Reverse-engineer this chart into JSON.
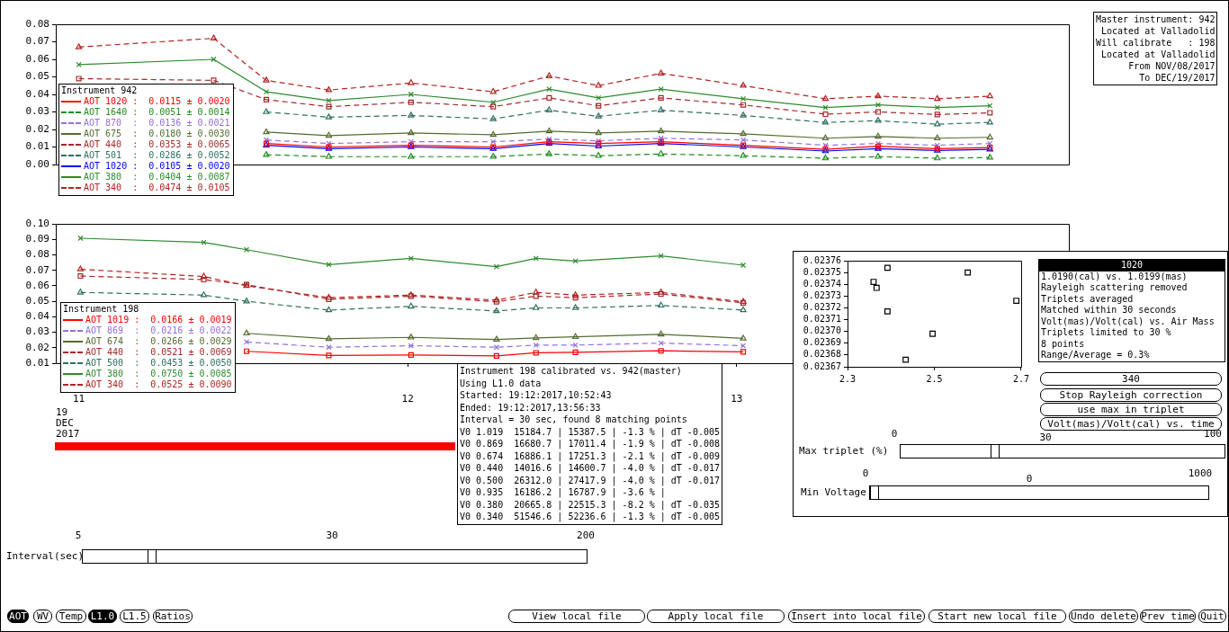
{
  "chart_data": [
    {
      "type": "line",
      "legend_title": "Instrument 942",
      "legend": "left",
      "tick_labels": "y",
      "x": [
        11.0,
        11.41,
        11.57,
        11.76,
        12.01,
        12.26,
        12.43,
        12.58,
        12.77,
        13.02,
        13.27,
        13.43,
        13.61,
        13.77
      ],
      "xlim": [
        10.93,
        14.01
      ],
      "ylim": [
        0,
        0.08
      ],
      "yticks": [
        {
          "value": 0,
          "label": "0.00"
        },
        0.01,
        0.02,
        0.03,
        0.04,
        0.05,
        0.06,
        0.07,
        0.08
      ],
      "annotations": [
        "Master instrument: 942",
        "Located at Valladolid",
        "Will calibrate   : 198",
        "Located at Valladolid",
        "From NOV/08/2017",
        "To DEC/19/2017"
      ],
      "series": [
        {
          "name": "AOT 1020 :  0.0115 ± 0.0020",
          "color": "#ff0000",
          "marker": "square",
          "line_style": "solid",
          "values": [
            null,
            null,
            0.012,
            0.01,
            0.011,
            0.01,
            0.013,
            0.012,
            0.013,
            0.011,
            0.0087,
            0.0104,
            0.009,
            0.0097
          ]
        },
        {
          "name": "AOT 1640 :  0.0051 ± 0.0014",
          "color": "#1e8c1e",
          "marker": "triangle",
          "line_style": "dashed",
          "values": [
            null,
            null,
            0.0056,
            0.0045,
            0.0045,
            0.0045,
            0.006,
            0.005,
            0.006,
            0.005,
            0.0036,
            0.0045,
            0.0036,
            0.004
          ]
        },
        {
          "name": "AOT 870  :  0.0136 ± 0.0021",
          "color": "#9370db",
          "marker": "cross",
          "line_style": "dashed",
          "values": [
            null,
            null,
            0.014,
            0.012,
            0.013,
            0.013,
            0.0145,
            0.0135,
            0.015,
            0.014,
            0.011,
            0.012,
            0.011,
            0.012
          ]
        },
        {
          "name": "AOT 675  :  0.0180 ± 0.0030",
          "color": "#556b2f",
          "marker": "triangle",
          "line_style": "solid",
          "values": [
            null,
            null,
            0.0185,
            0.0165,
            0.018,
            0.017,
            0.019,
            0.018,
            0.019,
            0.0175,
            0.015,
            0.016,
            0.015,
            0.0155
          ]
        },
        {
          "name": "AOT 440  :  0.0353 ± 0.0065",
          "color": "#a52a2a",
          "marker": "square",
          "line_style": "dashed",
          "values": [
            0.049,
            0.048,
            0.037,
            0.033,
            0.0355,
            0.033,
            0.038,
            0.0335,
            0.038,
            0.034,
            0.0287,
            0.03,
            0.0285,
            0.0295
          ]
        },
        {
          "name": "AOT 501  :  0.0286 ± 0.0052",
          "color": "#2f6f5f",
          "marker": "triangle",
          "line_style": "dashed",
          "values": [
            null,
            null,
            0.03,
            0.027,
            0.028,
            0.026,
            0.031,
            0.0275,
            0.031,
            0.028,
            0.024,
            0.025,
            0.023,
            0.024
          ]
        },
        {
          "name": "AOT 1020 :  0.0105 ± 0.0020",
          "color": "#0000ff",
          "marker": "triangle",
          "line_style": "solid",
          "values": [
            null,
            null,
            0.011,
            0.009,
            0.01,
            0.009,
            0.012,
            0.0105,
            0.012,
            0.01,
            0.0077,
            0.009,
            0.008,
            0.0087
          ]
        },
        {
          "name": "AOT 380  :  0.0404 ± 0.0087",
          "color": "#2e8b2e",
          "marker": "cross",
          "line_style": "solid",
          "values": [
            0.057,
            0.06,
            0.0415,
            0.0365,
            0.04,
            0.0355,
            0.043,
            0.038,
            0.043,
            0.0375,
            0.0325,
            0.034,
            0.0325,
            0.0335
          ]
        },
        {
          "name": "AOT 340  :  0.0474 ± 0.0105",
          "color": "#b22222",
          "marker": "triangle",
          "line_style": "dashed",
          "values": [
            0.067,
            0.072,
            0.048,
            0.0425,
            0.0465,
            0.0415,
            0.0505,
            0.045,
            0.052,
            0.045,
            0.0375,
            0.039,
            0.0375,
            0.039
          ]
        }
      ]
    },
    {
      "type": "line",
      "legend_title": "Instrument 198",
      "legend": "left",
      "x": [
        11.005,
        11.38,
        11.51,
        11.76,
        12.01,
        12.27,
        12.39,
        12.51,
        12.77,
        13.02
      ],
      "xlim": [
        10.93,
        14.01
      ],
      "xticks": [
        11,
        12,
        13
      ],
      "ylim": [
        0.01,
        0.1
      ],
      "yticks": [
        0.01,
        0.02,
        0.03,
        0.04,
        0.05,
        0.06,
        0.07,
        0.08,
        0.09,
        {
          "value": 0.1,
          "label": "0.10"
        }
      ],
      "annotations": [
        "19",
        "DEC",
        "2017"
      ],
      "series": [
        {
          "name": "AOT 1019 :  0.0166 ± 0.0019",
          "color": "#ff0000",
          "marker": "square",
          "line_style": "solid",
          "values": [
            null,
            null,
            0.0177,
            0.015,
            0.0153,
            0.0147,
            0.0167,
            0.017,
            0.018,
            0.0173
          ]
        },
        {
          "name": "AOT 869  :  0.0216 ± 0.0022",
          "color": "#9370db",
          "marker": "cross",
          "line_style": "dashed",
          "values": [
            null,
            null,
            0.0237,
            0.0203,
            0.0213,
            0.0203,
            0.0217,
            0.0217,
            0.023,
            0.0213
          ]
        },
        {
          "name": "AOT 674  :  0.0266 ± 0.0029",
          "color": "#556b2f",
          "marker": "triangle",
          "line_style": "solid",
          "values": [
            null,
            null,
            0.0293,
            0.0257,
            0.0267,
            0.0253,
            0.0263,
            0.027,
            0.0287,
            0.026
          ]
        },
        {
          "name": "AOT 440  :  0.0521 ± 0.0069",
          "color": "#a52a2a",
          "marker": "square",
          "line_style": "dashed",
          "values": [
            0.0663,
            0.064,
            0.0607,
            0.0513,
            0.0533,
            0.0497,
            0.0533,
            0.0523,
            0.0547,
            0.049
          ]
        },
        {
          "name": "AOT 500  :  0.0453 ± 0.0050",
          "color": "#2f6f5f",
          "marker": "triangle",
          "line_style": "dashed",
          "values": [
            0.0557,
            0.054,
            0.05,
            0.0443,
            0.0467,
            0.0437,
            0.0457,
            0.0457,
            0.0473,
            0.0443
          ]
        },
        {
          "name": "AOT 380  :  0.0750 ± 0.0085",
          "color": "#2e8b2e",
          "marker": "cross",
          "line_style": "solid",
          "values": [
            0.0907,
            0.088,
            0.0833,
            0.0737,
            0.0777,
            0.0723,
            0.0777,
            0.076,
            0.0793,
            0.0733
          ]
        },
        {
          "name": "AOT 340  :  0.0525 ± 0.0090",
          "color": "#b22222",
          "marker": "triangle",
          "line_style": "dashed",
          "values": [
            0.0707,
            0.066,
            0.06,
            0.0523,
            0.054,
            0.0507,
            0.0557,
            0.054,
            0.0557,
            0.0497
          ]
        }
      ]
    },
    {
      "type": "other",
      "title": "Instrument 198 calibrated vs. 942(master)",
      "annotations": [
        "Using L1.0 data",
        "Started: 19:12:2017,10:52:43",
        "Ended: 19:12:2017,13:56:33",
        "Interval = 30 sec, found 8 matching points",
        "V0 1.019  15184.7 | 15387.5 | -1.3 % | dT -0.005",
        "V0 0.869  16680.7 | 17011.4 | -1.9 % | dT -0.008",
        "V0 0.674  16886.1 | 17251.3 | -2.1 % | dT -0.009",
        "V0 0.440  14016.6 | 14600.7 | -4.0 % | dT -0.017",
        "V0 0.500  26312.0 | 27417.9 | -4.0 % | dT -0.017",
        "V0 0.935  16186.2 | 16787.9 | -3.6 % |",
        "V0 0.380  20665.8 | 22515.3 | -8.2 % | dT -0.035",
        "V0 0.340  51546.6 | 52236.6 | -1.3 % | dT -0.005"
      ]
    },
    {
      "type": "scatter",
      "marker": "square",
      "xlim": [
        2.3,
        2.7
      ],
      "xticks": [
        2.3,
        2.5,
        2.7
      ],
      "ylim": [
        0.02367,
        0.02376
      ],
      "yticks": [
        0.02367,
        0.02368,
        0.02369,
        {
          "value": 0.0237,
          "label": "0.02370"
        },
        0.02371,
        0.02372,
        0.02373,
        0.02374,
        0.02375,
        0.02376
      ],
      "series": [
        {
          "color": "#000000",
          "x": [
            2.392,
            2.36,
            2.367,
            2.392,
            2.496,
            2.434,
            2.577,
            2.689
          ],
          "values": [
            0.023754,
            0.023742,
            0.023737,
            0.023717,
            0.023698,
            0.023676,
            0.02375,
            0.023726
          ]
        }
      ],
      "annotations": [
        "1020",
        "1.0190(cal) vs. 1.0199(mas)",
        "Rayleigh scattering removed",
        "Triplets averaged",
        "Matched within 30 seconds",
        "Volt(mas)/Volt(cal) vs. Air Mass",
        "Triplets limited to 30 %",
        "8 points",
        "Range/Average = 0.3%",
        "340",
        "Stop Rayleigh correction",
        "use max in triplet",
        "Volt(mas)/Volt(cal) vs. time",
        "Max triplet (%)",
        "0",
        "30",
        "100",
        "Min Voltage",
        "0",
        "0",
        "1000"
      ]
    },
    {
      "type": "other",
      "annotations": [
        "Interval(sec)",
        "5",
        "30",
        "200",
        "AOT",
        "WV",
        "Temp",
        "L1.0",
        "L1.5",
        "Ratios",
        "View local file",
        "Apply local file",
        "Insert into local file",
        "Start new local file",
        "Undo delete",
        "Prev time",
        "Quit"
      ]
    }
  ]
}
